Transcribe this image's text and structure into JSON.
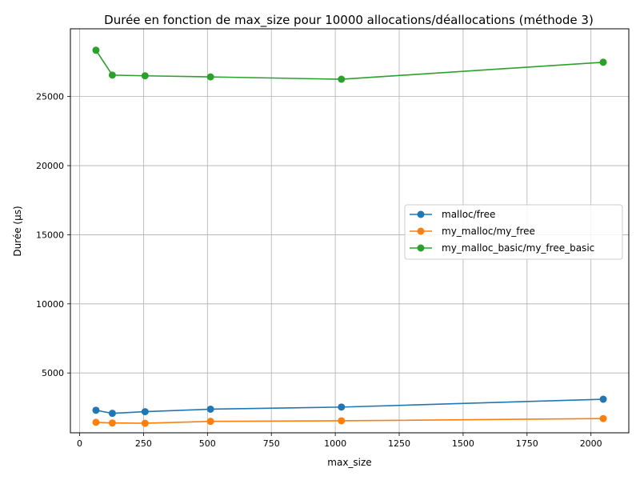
{
  "chart_data": {
    "type": "line",
    "title": "Durée en fonction de max_size pour 10000 allocations/déallocations (méthode 3)",
    "xlabel": "max_size",
    "ylabel": "Durée (µs)",
    "x": [
      64,
      128,
      256,
      512,
      1024,
      2048
    ],
    "xlim": [
      -36,
      2148
    ],
    "ylim": [
      670,
      29900
    ],
    "xticks": [
      0,
      250,
      500,
      750,
      1000,
      1250,
      1500,
      1750,
      2000
    ],
    "yticks": [
      5000,
      10000,
      15000,
      20000,
      25000
    ],
    "grid": true,
    "legend_position": "center-right",
    "series": [
      {
        "name": "malloc/free",
        "color": "#1f77b4",
        "values": [
          2300,
          2080,
          2200,
          2380,
          2530,
          3100
        ]
      },
      {
        "name": "my_malloc/my_free",
        "color": "#ff7f0e",
        "values": [
          1430,
          1380,
          1360,
          1500,
          1540,
          1700
        ]
      },
      {
        "name": "my_malloc_basic/my_free_basic",
        "color": "#2ca02c",
        "values": [
          28350,
          26550,
          26500,
          26420,
          26250,
          27480
        ]
      }
    ]
  }
}
